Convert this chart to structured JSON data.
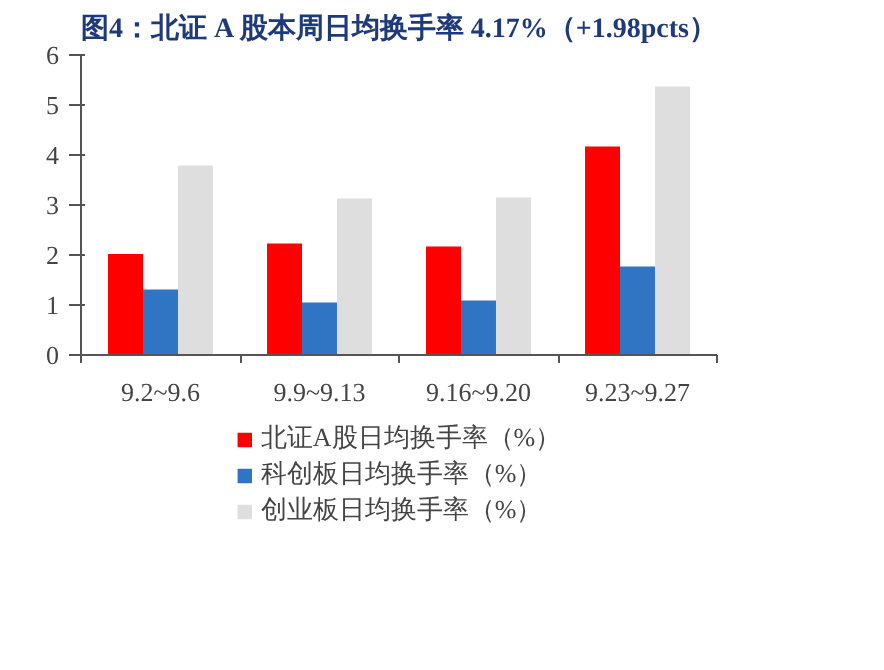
{
  "chart_data": {
    "type": "bar",
    "title": "图4：北证 A 股本周日均换手率 4.17%（+1.98pcts）",
    "categories": [
      "9.2~9.6",
      "9.9~9.13",
      "9.16~9.20",
      "9.23~9.27"
    ],
    "series": [
      {
        "name": "北证A股日均换手率（%）",
        "color": "#ff0000",
        "values": [
          2.02,
          2.23,
          2.17,
          4.17
        ]
      },
      {
        "name": "科创板日均换手率（%）",
        "color": "#3074c4",
        "values": [
          1.31,
          1.05,
          1.09,
          1.77
        ]
      },
      {
        "name": "创业板日均换手率（%）",
        "color": "#dedede",
        "values": [
          3.79,
          3.13,
          3.15,
          5.37
        ]
      }
    ],
    "ylim": [
      0,
      6
    ],
    "yticks": [
      0,
      1,
      2,
      3,
      4,
      5,
      6
    ],
    "grid": false,
    "legend": "bottom"
  }
}
